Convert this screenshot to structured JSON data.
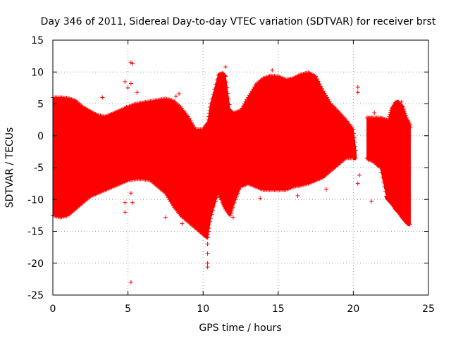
{
  "chart_data": {
    "type": "scatter",
    "title": "Day 346 of 2011, Sidereal Day-to-day VTEC variation (SDTVAR) for receiver brst",
    "xlabel": "GPS time / hours",
    "ylabel": "SDTVAR / TECUs",
    "xlim": [
      0,
      25
    ],
    "ylim": [
      -25,
      15
    ],
    "xticks": [
      0,
      5,
      10,
      15,
      20,
      25
    ],
    "yticks": [
      -25,
      -20,
      -15,
      -10,
      -5,
      0,
      5,
      10,
      15
    ],
    "grid": true,
    "series_color": "#ff0000",
    "marker": "+",
    "envelope": {
      "x": [
        0.0,
        0.5,
        1.0,
        1.5,
        2.0,
        2.5,
        3.0,
        3.5,
        4.0,
        4.5,
        5.0,
        5.5,
        6.0,
        6.5,
        7.0,
        7.5,
        8.0,
        8.5,
        9.0,
        9.5,
        10.0,
        10.3,
        10.5,
        11.0,
        11.3,
        11.5,
        11.8,
        12.0,
        12.5,
        13.0,
        13.5,
        14.0,
        14.5,
        15.0,
        15.5,
        16.0,
        16.5,
        17.0,
        17.5,
        18.0,
        18.5,
        19.0,
        19.5,
        20.0,
        20.2
      ],
      "upper": [
        6.0,
        6.0,
        5.9,
        5.5,
        4.5,
        3.8,
        3.2,
        3.0,
        3.5,
        4.0,
        4.5,
        5.0,
        5.2,
        5.4,
        5.6,
        5.8,
        5.5,
        4.5,
        3.0,
        1.0,
        1.0,
        2.0,
        5.0,
        9.5,
        9.8,
        9.3,
        4.0,
        3.5,
        4.0,
        6.0,
        8.0,
        9.0,
        9.4,
        9.3,
        8.8,
        9.0,
        9.6,
        9.9,
        9.3,
        7.0,
        5.0,
        3.8,
        2.5,
        1.0,
        -3.0
      ],
      "lower": [
        -12.5,
        -12.8,
        -12.5,
        -11.5,
        -10.5,
        -9.5,
        -9.0,
        -8.5,
        -8.0,
        -7.5,
        -7.0,
        -6.8,
        -6.8,
        -7.0,
        -8.0,
        -9.0,
        -11.0,
        -12.5,
        -13.5,
        -14.5,
        -15.5,
        -16.0,
        -13.0,
        -9.0,
        -10.5,
        -11.5,
        -12.5,
        -11.0,
        -8.0,
        -7.5,
        -8.0,
        -8.5,
        -8.5,
        -8.5,
        -8.5,
        -8.0,
        -7.8,
        -7.5,
        -7.0,
        -6.5,
        -5.5,
        -4.5,
        -3.5,
        -3.5,
        -3.5
      ]
    },
    "envelope2": {
      "x": [
        20.9,
        21.3,
        21.8,
        22.2,
        22.3,
        22.5,
        22.8,
        23.0,
        23.3,
        23.6,
        23.8
      ],
      "upper": [
        2.8,
        2.8,
        2.8,
        2.5,
        2.0,
        4.0,
        5.2,
        5.3,
        4.5,
        2.5,
        1.5
      ],
      "lower": [
        -3.5,
        -4.0,
        -5.0,
        -9.5,
        -10.0,
        -10.5,
        -11.5,
        -12.0,
        -13.0,
        -13.8,
        -13.9
      ]
    },
    "outliers": [
      {
        "x": 4.8,
        "y": 8.5
      },
      {
        "x": 5.2,
        "y": 11.5
      },
      {
        "x": 5.3,
        "y": 11.3
      },
      {
        "x": 5.2,
        "y": 8.2
      },
      {
        "x": 5.0,
        "y": 7.5
      },
      {
        "x": 5.6,
        "y": 6.8
      },
      {
        "x": 3.3,
        "y": 6.0
      },
      {
        "x": 8.2,
        "y": 6.2
      },
      {
        "x": 8.4,
        "y": 6.6
      },
      {
        "x": 4.9,
        "y": 4.5
      },
      {
        "x": 4.8,
        "y": -10.5
      },
      {
        "x": 4.8,
        "y": -12.0
      },
      {
        "x": 5.2,
        "y": -9.0
      },
      {
        "x": 5.3,
        "y": -10.5
      },
      {
        "x": 5.2,
        "y": -23.0
      },
      {
        "x": 7.5,
        "y": -12.8
      },
      {
        "x": 8.6,
        "y": -13.8
      },
      {
        "x": 10.3,
        "y": -17.0
      },
      {
        "x": 10.3,
        "y": -18.5
      },
      {
        "x": 10.3,
        "y": -20.0
      },
      {
        "x": 10.3,
        "y": -20.6
      },
      {
        "x": 11.5,
        "y": 10.8
      },
      {
        "x": 14.6,
        "y": 10.3
      },
      {
        "x": 17.0,
        "y": 8.5
      },
      {
        "x": 20.3,
        "y": 7.6
      },
      {
        "x": 20.3,
        "y": 6.8
      },
      {
        "x": 20.3,
        "y": -7.5
      },
      {
        "x": 20.4,
        "y": -6.2
      },
      {
        "x": 21.2,
        "y": -10.3
      },
      {
        "x": 21.4,
        "y": 3.6
      },
      {
        "x": 22.6,
        "y": 1.5
      },
      {
        "x": 23.8,
        "y": 1.3
      },
      {
        "x": 23.2,
        "y": 5.3
      },
      {
        "x": 12.0,
        "y": -12.8
      },
      {
        "x": 13.8,
        "y": -9.8
      },
      {
        "x": 16.3,
        "y": -9.4
      },
      {
        "x": 18.2,
        "y": -8.4
      },
      {
        "x": 21.0,
        "y": -3.8
      }
    ]
  }
}
